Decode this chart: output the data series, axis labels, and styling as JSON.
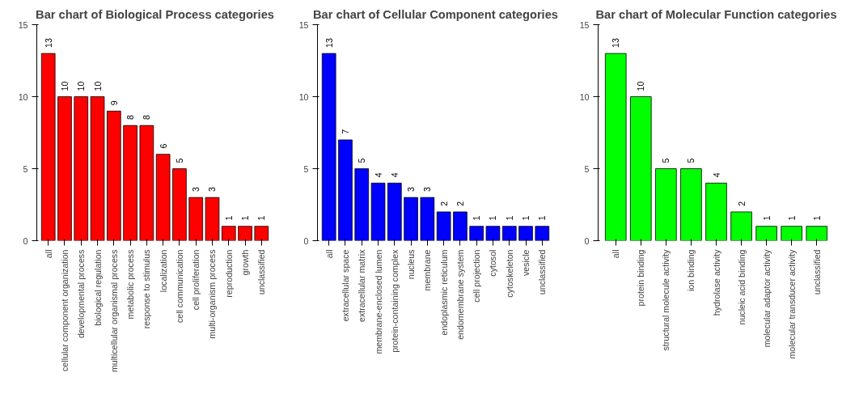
{
  "chart_data": [
    {
      "type": "bar",
      "title": "Bar chart of Biological Process categories",
      "categories": [
        "all",
        "cellular component organization",
        "developmental process",
        "biological regulation",
        "multicellular organismal process",
        "metabolic process",
        "response to stimulus",
        "localization",
        "cell communication",
        "cell proliferation",
        "multi-organism process",
        "reproduction",
        "growth",
        "unclassified"
      ],
      "values": [
        13,
        10,
        10,
        10,
        9,
        8,
        8,
        6,
        5,
        3,
        3,
        1,
        1,
        1
      ],
      "color": "#ff0000",
      "ylim": [
        0,
        15
      ],
      "yticks": [
        0,
        5,
        10,
        15
      ],
      "data_labels": true,
      "grid": false
    },
    {
      "type": "bar",
      "title": "Bar chart of Cellular Component categories",
      "categories": [
        "all",
        "extracellular space",
        "extracellular matrix",
        "membrane-enclosed lumen",
        "protein-containing complex",
        "nucleus",
        "membrane",
        "endoplasmic reticulum",
        "endomembrane system",
        "cell projection",
        "cytosol",
        "cytoskeleton",
        "vesicle",
        "unclassified"
      ],
      "values": [
        13,
        7,
        5,
        4,
        4,
        3,
        3,
        2,
        2,
        1,
        1,
        1,
        1,
        1
      ],
      "color": "#0000ff",
      "ylim": [
        0,
        15
      ],
      "yticks": [
        0,
        5,
        10,
        15
      ],
      "data_labels": true,
      "grid": false
    },
    {
      "type": "bar",
      "title": "Bar chart of Molecular Function categories",
      "categories": [
        "all",
        "protein binding",
        "structural molecule activity",
        "ion binding",
        "hydrolase activity",
        "nucleic acid binding",
        "molecular adaptor activity",
        "molecular transducer activity",
        "unclassified"
      ],
      "values": [
        13,
        10,
        5,
        5,
        4,
        2,
        1,
        1,
        1
      ],
      "color": "#00ff00",
      "ylim": [
        0,
        15
      ],
      "yticks": [
        0,
        5,
        10,
        15
      ],
      "data_labels": true,
      "grid": false
    }
  ]
}
